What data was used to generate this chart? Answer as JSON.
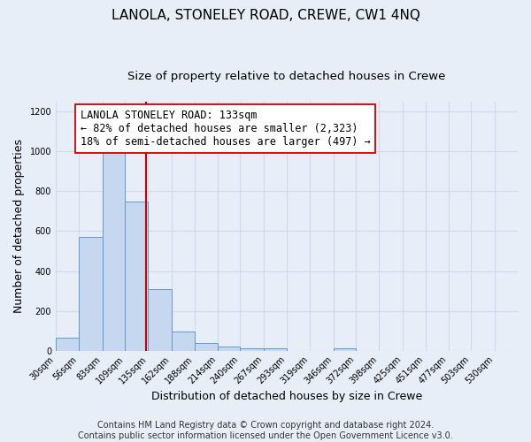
{
  "title": "LANOLA, STONELEY ROAD, CREWE, CW1 4NQ",
  "subtitle": "Size of property relative to detached houses in Crewe",
  "xlabel": "Distribution of detached houses by size in Crewe",
  "ylabel": "Number of detached properties",
  "bar_color": "#c5d8f0",
  "bar_edge_color": "#6699cc",
  "bins": [
    30,
    56,
    83,
    109,
    135,
    162,
    188,
    214,
    240,
    267,
    293,
    319,
    346,
    372,
    398,
    425,
    451,
    477,
    503,
    530,
    556
  ],
  "counts": [
    65,
    570,
    1000,
    750,
    310,
    95,
    40,
    20,
    10,
    10,
    0,
    0,
    10,
    0,
    0,
    0,
    0,
    0,
    0,
    0
  ],
  "property_size": 133,
  "vline_color": "#cc0000",
  "annotation_line1": "LANOLA STONELEY ROAD: 133sqm",
  "annotation_line2": "← 82% of detached houses are smaller (2,323)",
  "annotation_line3": "18% of semi-detached houses are larger (497) →",
  "annotation_box_color": "#ffffff",
  "annotation_box_edge_color": "#cc0000",
  "ylim": [
    0,
    1250
  ],
  "yticks": [
    0,
    200,
    400,
    600,
    800,
    1000,
    1200
  ],
  "footer_text": "Contains HM Land Registry data © Crown copyright and database right 2024.\nContains public sector information licensed under the Open Government Licence v3.0.",
  "background_color": "#e8eef8",
  "grid_color": "#d0daea",
  "title_fontsize": 11,
  "subtitle_fontsize": 9.5,
  "annotation_fontsize": 8.5,
  "footer_fontsize": 7,
  "tick_label_fontsize": 7,
  "axis_label_fontsize": 9
}
